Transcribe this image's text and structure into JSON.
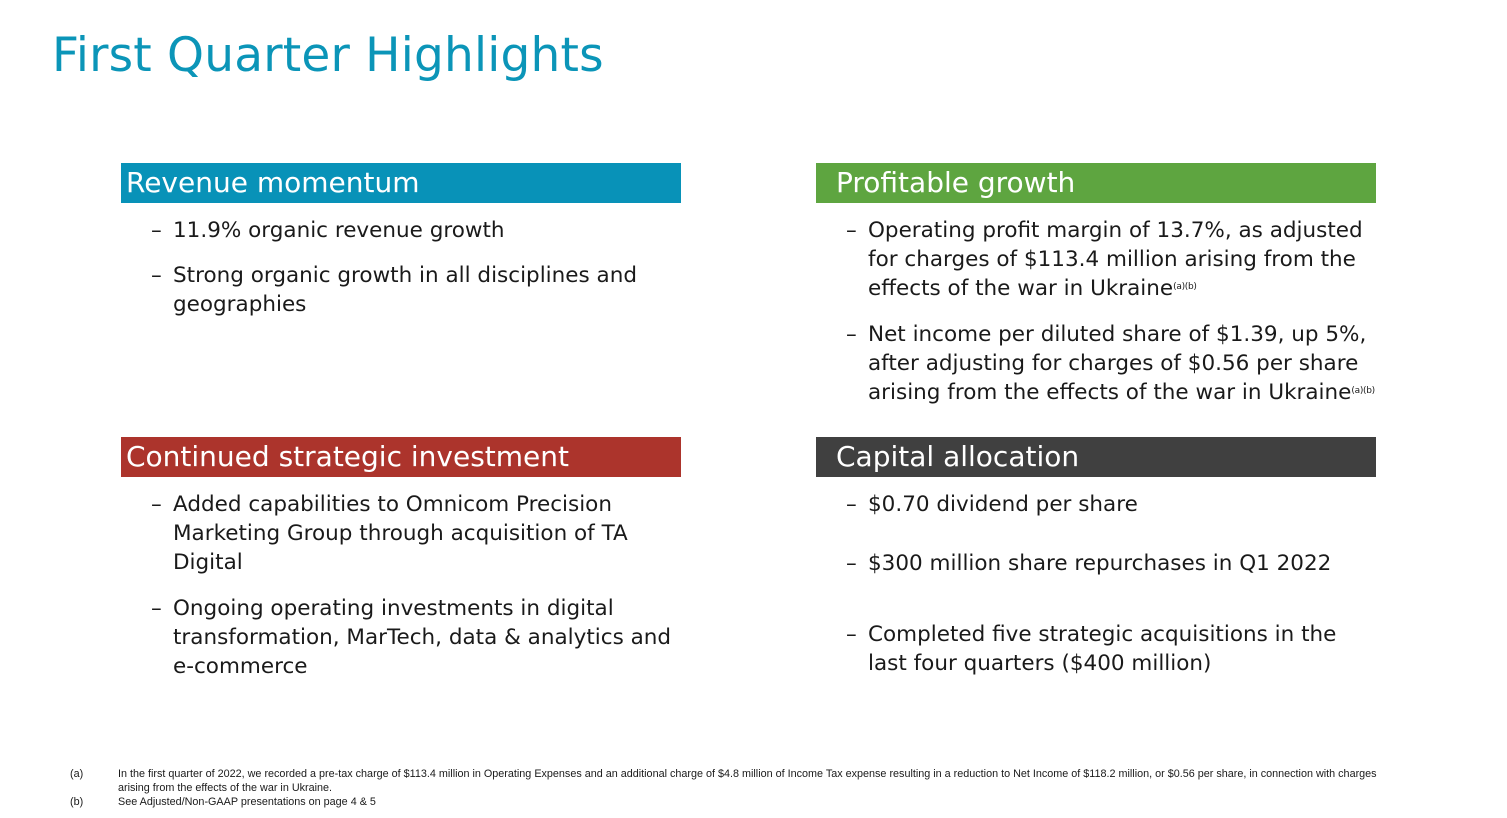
{
  "title": "First Quarter Highlights",
  "colors": {
    "title": "#0b95b8",
    "revenue": "#0892b8",
    "profit": "#5ea540",
    "investment": "#ac342c",
    "capital": "#404040"
  },
  "sections": {
    "revenue": {
      "header": "Revenue momentum",
      "bullets": [
        "11.9% organic revenue growth",
        "Strong organic growth in all disciplines and geographies"
      ]
    },
    "profit": {
      "header": "Profitable growth",
      "bullets": [
        {
          "text": "Operating profit margin of 13.7%, as adjusted for charges of $113.4 million arising from the effects of the war in Ukraine",
          "note": "(a)(b)"
        },
        {
          "text": "Net income per diluted share of $1.39, up 5%, after adjusting for charges of $0.56 per share arising from the effects of the war in Ukraine",
          "note": "(a)(b)"
        }
      ]
    },
    "investment": {
      "header": "Continued strategic investment",
      "bullets": [
        "Added capabilities to Omnicom Precision Marketing Group through acquisition of TA Digital",
        "Ongoing operating investments in digital transformation, MarTech, data & analytics and e-commerce"
      ]
    },
    "capital": {
      "header": "Capital allocation",
      "bullets": [
        "$0.70 dividend per share",
        "$300 million share repurchases in Q1 2022",
        "Completed five strategic acquisitions in the last four quarters ($400 million)"
      ]
    }
  },
  "bullet_marker": "–",
  "footnotes": [
    {
      "label": "(a)",
      "text": "In the first quarter of 2022, we recorded a pre-tax charge of $113.4 million in Operating Expenses and an additional charge of $4.8 million of Income Tax expense resulting in a reduction to Net Income of $118.2 million, or $0.56 per share, in connection with charges arising from the effects of the war in Ukraine."
    },
    {
      "label": "(b)",
      "text": "See Adjusted/Non-GAAP presentations on page 4 & 5"
    }
  ]
}
